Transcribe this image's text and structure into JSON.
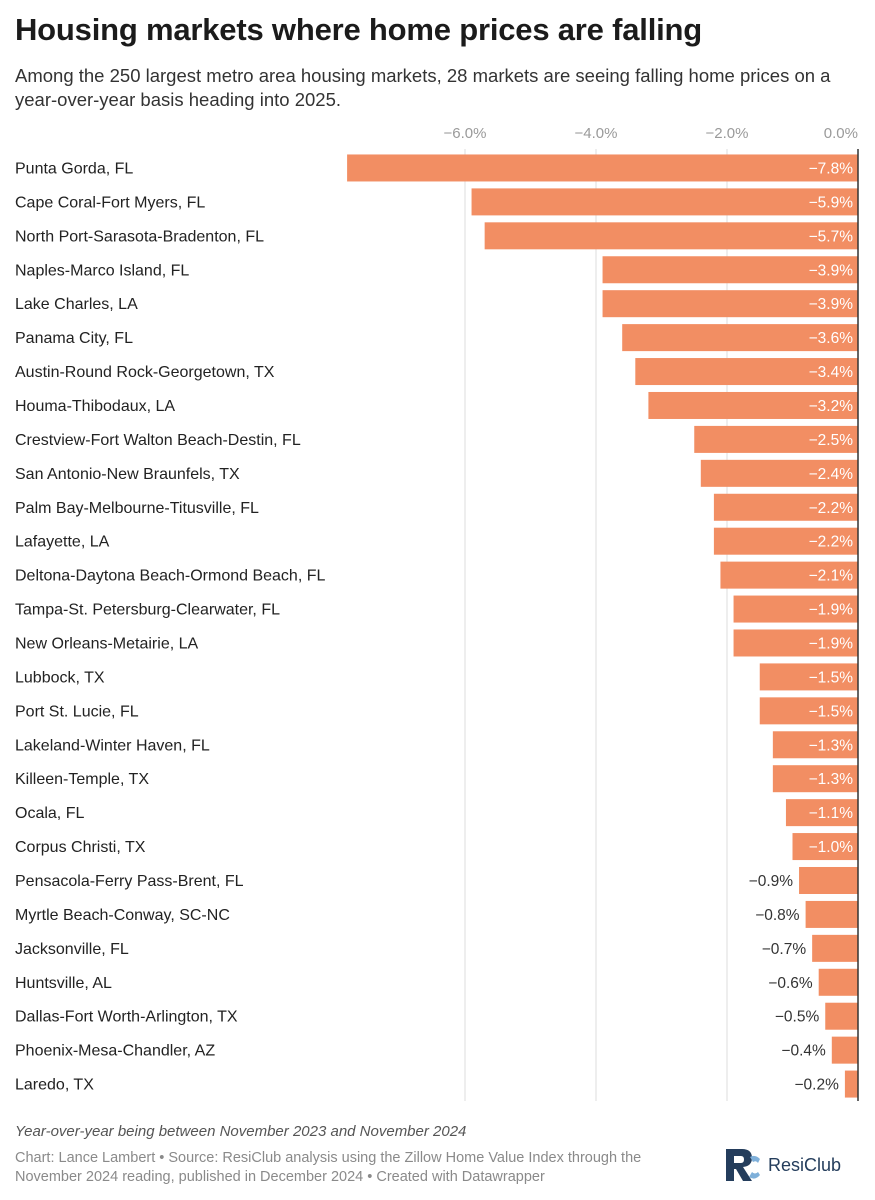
{
  "title": "Housing markets where home prices are falling",
  "subtitle": "Among the 250 largest metro area housing markets, 28 markets are seeing falling home prices on a year-over-year basis heading into 2025.",
  "note": "Year-over-year being between November 2023 and November 2024",
  "credits": "Chart: Lance Lambert • Source: ResiClub analysis using the Zillow Home Value Index through the November 2024 reading, published in December 2024 • Created with Datawrapper",
  "brand": {
    "name": "ResiClub",
    "logo_text": "RC"
  },
  "colors": {
    "bar": "#f28e63",
    "grid": "#dddddd",
    "axis": "#333333",
    "brand": "#243d5c",
    "brand_light": "#7fb0da"
  },
  "chart_data": {
    "type": "bar",
    "orientation": "horizontal",
    "xlim": [
      -8.0,
      0.0
    ],
    "ticks": [
      {
        "value": -6.0,
        "label": "−6.0%"
      },
      {
        "value": -4.0,
        "label": "−4.0%"
      },
      {
        "value": -2.0,
        "label": "−2.0%"
      },
      {
        "value": 0.0,
        "label": "0.0%"
      }
    ],
    "categories": [
      "Punta Gorda, FL",
      "Cape Coral-Fort Myers, FL",
      "North Port-Sarasota-Bradenton, FL",
      "Naples-Marco Island, FL",
      "Lake Charles, LA",
      "Panama City, FL",
      "Austin-Round Rock-Georgetown, TX",
      "Houma-Thibodaux, LA",
      "Crestview-Fort Walton Beach-Destin, FL",
      "San Antonio-New Braunfels, TX",
      "Palm Bay-Melbourne-Titusville, FL",
      "Lafayette, LA",
      "Deltona-Daytona Beach-Ormond Beach, FL",
      "Tampa-St. Petersburg-Clearwater, FL",
      "New Orleans-Metairie, LA",
      "Lubbock, TX",
      "Port St. Lucie, FL",
      "Lakeland-Winter Haven, FL",
      "Killeen-Temple, TX",
      "Ocala, FL",
      "Corpus Christi, TX",
      "Pensacola-Ferry Pass-Brent, FL",
      "Myrtle Beach-Conway, SC-NC",
      "Jacksonville, FL",
      "Huntsville, AL",
      "Dallas-Fort Worth-Arlington, TX",
      "Phoenix-Mesa-Chandler, AZ",
      "Laredo, TX"
    ],
    "values": [
      -7.8,
      -5.9,
      -5.7,
      -3.9,
      -3.9,
      -3.6,
      -3.4,
      -3.2,
      -2.5,
      -2.4,
      -2.2,
      -2.2,
      -2.1,
      -1.9,
      -1.9,
      -1.5,
      -1.5,
      -1.3,
      -1.3,
      -1.1,
      -1.0,
      -0.9,
      -0.8,
      -0.7,
      -0.6,
      -0.5,
      -0.4,
      -0.2
    ],
    "value_labels": [
      "−7.8%",
      "−5.9%",
      "−5.7%",
      "−3.9%",
      "−3.9%",
      "−3.6%",
      "−3.4%",
      "−3.2%",
      "−2.5%",
      "−2.4%",
      "−2.2%",
      "−2.2%",
      "−2.1%",
      "−1.9%",
      "−1.9%",
      "−1.5%",
      "−1.5%",
      "−1.3%",
      "−1.3%",
      "−1.1%",
      "−1.0%",
      "−0.9%",
      "−0.8%",
      "−0.7%",
      "−0.6%",
      "−0.5%",
      "−0.4%",
      "−0.2%"
    ]
  }
}
